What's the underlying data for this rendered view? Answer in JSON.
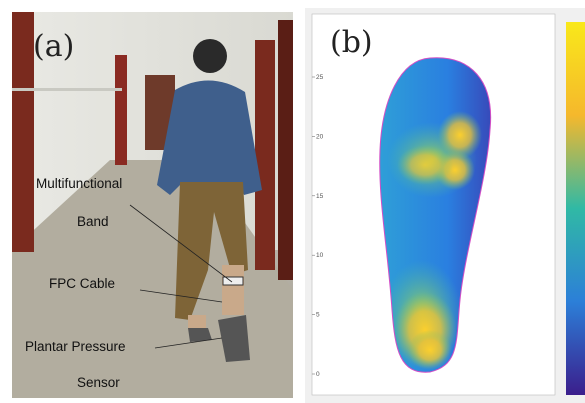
{
  "panel_a": {
    "label": "(a)",
    "annotations": [
      {
        "lines": [
          "Multifunctional",
          "Band"
        ]
      },
      {
        "lines": [
          "FPC Cable"
        ]
      },
      {
        "lines": [
          "Plantar Pressure",
          "Sensor"
        ]
      }
    ]
  },
  "panel_b": {
    "label": "(b)",
    "yticks": [
      0,
      5,
      10,
      15,
      20,
      25
    ]
  }
}
